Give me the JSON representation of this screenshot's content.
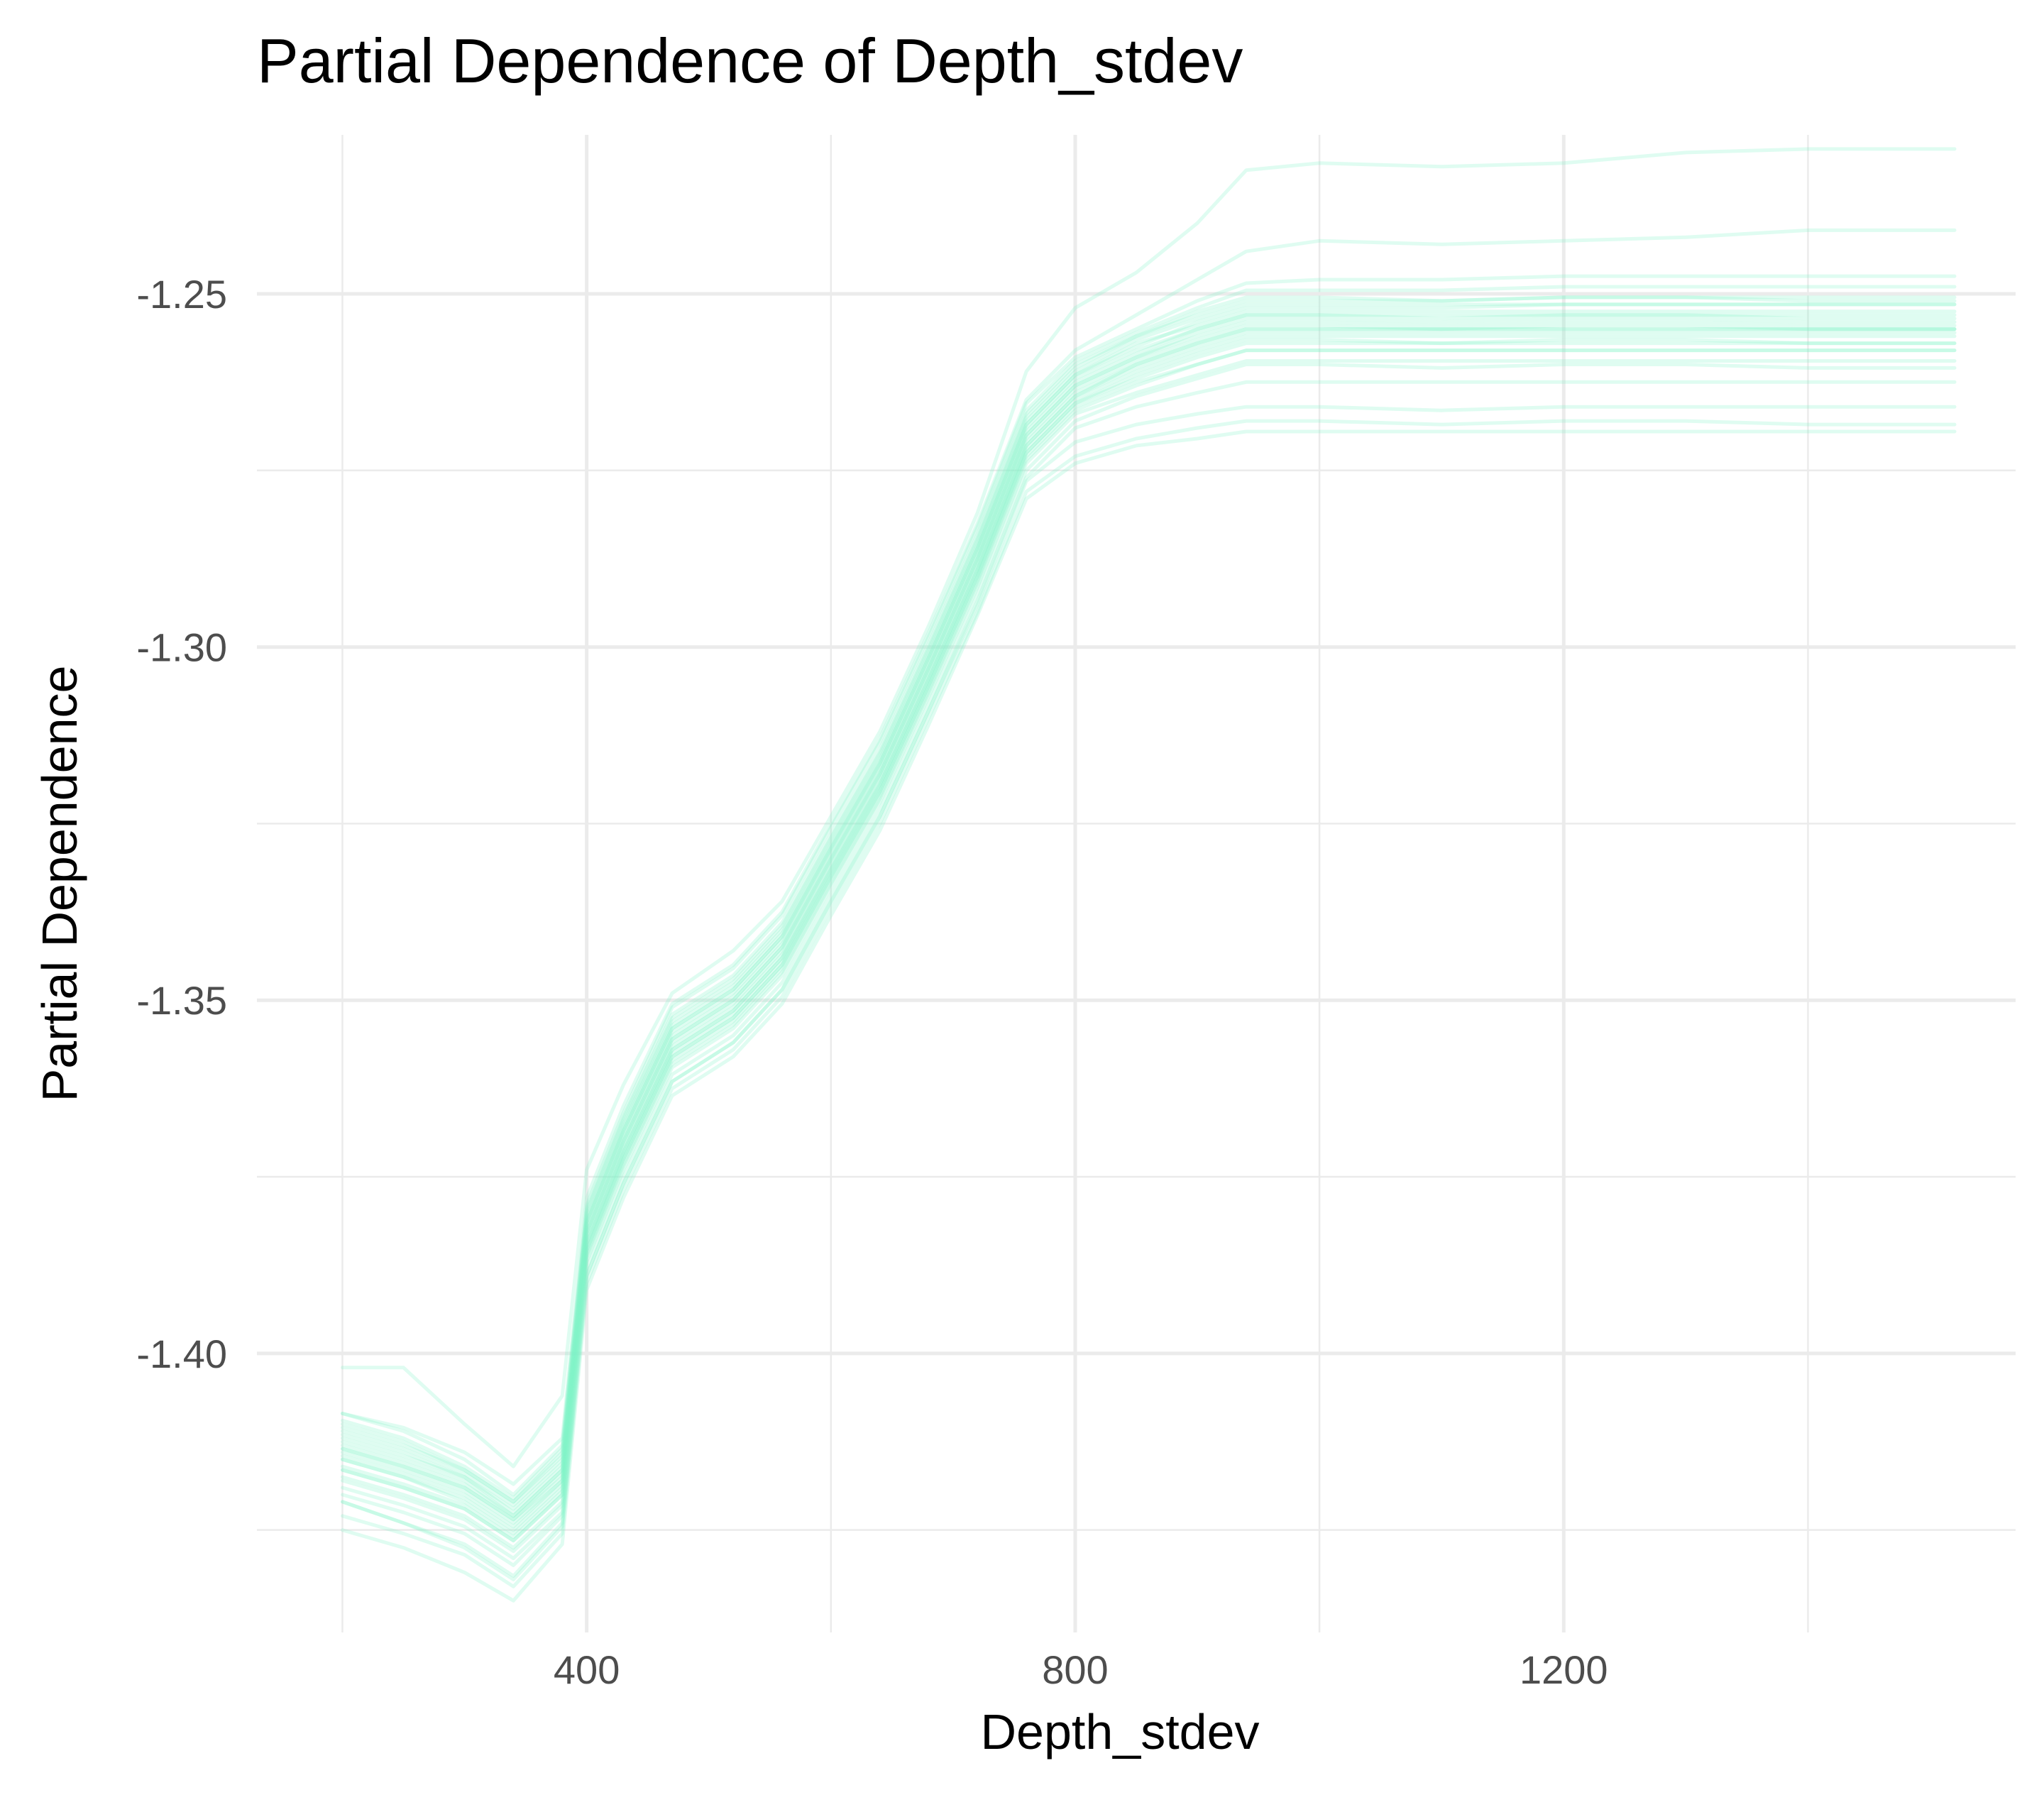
{
  "chart_data": {
    "type": "line",
    "title": "Partial Dependence of Depth_stdev",
    "xlabel": "Depth_stdev",
    "ylabel": "Partial Dependence",
    "xlim": [
      130,
      1570
    ],
    "ylim": [
      -1.4395,
      -1.2275
    ],
    "x_ticks": [
      400,
      800,
      1200
    ],
    "x_tick_labels": [
      "400",
      "800",
      "1200"
    ],
    "y_ticks": [
      -1.4,
      -1.35,
      -1.3,
      -1.25
    ],
    "y_tick_labels": [
      "-1.40",
      "-1.35",
      "-1.30",
      "-1.25"
    ],
    "grid": true,
    "legend": "none",
    "line_color": "#7ef2c9",
    "line_opacity": 0.25,
    "x": [
      200,
      250,
      300,
      340,
      380,
      400,
      430,
      470,
      520,
      560,
      600,
      640,
      680,
      720,
      760,
      800,
      850,
      900,
      940,
      1000,
      1100,
      1200,
      1300,
      1400,
      1520
    ],
    "series": [
      {
        "values": [
          -1.4135,
          -1.416,
          -1.419,
          -1.4235,
          -1.4175,
          -1.383,
          -1.37,
          -1.3555,
          -1.35,
          -1.3425,
          -1.33,
          -1.318,
          -1.303,
          -1.2875,
          -1.27,
          -1.263,
          -1.259,
          -1.256,
          -1.254,
          -1.254,
          -1.2545,
          -1.254,
          -1.254,
          -1.2545,
          -1.2545
        ]
      },
      {
        "values": [
          -1.41,
          -1.4125,
          -1.4165,
          -1.421,
          -1.414,
          -1.38,
          -1.367,
          -1.3525,
          -1.347,
          -1.3395,
          -1.327,
          -1.315,
          -1.3,
          -1.2845,
          -1.267,
          -1.26,
          -1.256,
          -1.2525,
          -1.2505,
          -1.2505,
          -1.251,
          -1.2505,
          -1.2505,
          -1.251,
          -1.251
        ]
      },
      {
        "values": [
          -1.4165,
          -1.419,
          -1.422,
          -1.4265,
          -1.42,
          -1.3855,
          -1.3725,
          -1.358,
          -1.3525,
          -1.345,
          -1.3325,
          -1.3205,
          -1.3055,
          -1.29,
          -1.2725,
          -1.2655,
          -1.2615,
          -1.2585,
          -1.2565,
          -1.2565,
          -1.257,
          -1.2565,
          -1.2565,
          -1.257,
          -1.257
        ]
      },
      {
        "values": [
          -1.4085,
          -1.411,
          -1.415,
          -1.42,
          -1.413,
          -1.379,
          -1.366,
          -1.351,
          -1.3455,
          -1.338,
          -1.3255,
          -1.3135,
          -1.2985,
          -1.283,
          -1.2655,
          -1.259,
          -1.255,
          -1.251,
          -1.2485,
          -1.248,
          -1.248,
          -1.2475,
          -1.2475,
          -1.2475,
          -1.2475
        ]
      },
      {
        "values": [
          -1.42,
          -1.4225,
          -1.4255,
          -1.43,
          -1.423,
          -1.388,
          -1.375,
          -1.3605,
          -1.355,
          -1.3475,
          -1.335,
          -1.323,
          -1.308,
          -1.2925,
          -1.275,
          -1.268,
          -1.2645,
          -1.262,
          -1.26,
          -1.26,
          -1.2605,
          -1.26,
          -1.26,
          -1.2605,
          -1.2605
        ]
      },
      {
        "values": [
          -1.412,
          -1.4145,
          -1.4175,
          -1.4225,
          -1.416,
          -1.3815,
          -1.3685,
          -1.354,
          -1.3485,
          -1.341,
          -1.3285,
          -1.3165,
          -1.3015,
          -1.286,
          -1.2685,
          -1.2615,
          -1.257,
          -1.2545,
          -1.2525,
          -1.2525,
          -1.2525,
          -1.2525,
          -1.2525,
          -1.2525,
          -1.2525
        ]
      },
      {
        "values": [
          -1.415,
          -1.4175,
          -1.4205,
          -1.425,
          -1.4185,
          -1.3845,
          -1.3715,
          -1.357,
          -1.3515,
          -1.344,
          -1.3315,
          -1.3195,
          -1.3045,
          -1.289,
          -1.2715,
          -1.2645,
          -1.2605,
          -1.2575,
          -1.2555,
          -1.2555,
          -1.2555,
          -1.2555,
          -1.2555,
          -1.2555,
          -1.2555
        ]
      },
      {
        "values": [
          -1.418,
          -1.4205,
          -1.4235,
          -1.428,
          -1.4215,
          -1.3865,
          -1.3735,
          -1.359,
          -1.3535,
          -1.346,
          -1.3335,
          -1.3215,
          -1.3065,
          -1.291,
          -1.2735,
          -1.2665,
          -1.263,
          -1.26,
          -1.258,
          -1.258,
          -1.258,
          -1.258,
          -1.258,
          -1.258,
          -1.258
        ]
      },
      {
        "values": [
          -1.411,
          -1.4135,
          -1.417,
          -1.4215,
          -1.415,
          -1.381,
          -1.368,
          -1.3535,
          -1.348,
          -1.3405,
          -1.328,
          -1.316,
          -1.301,
          -1.2855,
          -1.268,
          -1.261,
          -1.2565,
          -1.2535,
          -1.2515,
          -1.2515,
          -1.2515,
          -1.2515,
          -1.2515,
          -1.2515,
          -1.2515
        ]
      },
      {
        "values": [
          -1.414,
          -1.4165,
          -1.4195,
          -1.424,
          -1.418,
          -1.3835,
          -1.3705,
          -1.356,
          -1.3505,
          -1.343,
          -1.3305,
          -1.3185,
          -1.3035,
          -1.288,
          -1.2705,
          -1.2635,
          -1.2595,
          -1.2565,
          -1.2545,
          -1.2545,
          -1.255,
          -1.2545,
          -1.2545,
          -1.255,
          -1.255
        ]
      },
      {
        "values": [
          -1.4095,
          -1.412,
          -1.416,
          -1.4205,
          -1.4135,
          -1.3795,
          -1.3665,
          -1.352,
          -1.3465,
          -1.339,
          -1.3265,
          -1.3145,
          -1.2995,
          -1.284,
          -1.2665,
          -1.2595,
          -1.2555,
          -1.252,
          -1.2495,
          -1.2495,
          -1.2495,
          -1.249,
          -1.249,
          -1.249,
          -1.249
        ]
      },
      {
        "values": [
          -1.421,
          -1.424,
          -1.427,
          -1.4315,
          -1.424,
          -1.389,
          -1.376,
          -1.3615,
          -1.356,
          -1.3485,
          -1.336,
          -1.324,
          -1.309,
          -1.2935,
          -1.276,
          -1.269,
          -1.266,
          -1.264,
          -1.2625,
          -1.2625,
          -1.2625,
          -1.2625,
          -1.2625,
          -1.2625,
          -1.2625
        ]
      },
      {
        "values": [
          -1.4125,
          -1.415,
          -1.418,
          -1.423,
          -1.4165,
          -1.382,
          -1.369,
          -1.3545,
          -1.349,
          -1.3415,
          -1.329,
          -1.317,
          -1.302,
          -1.2865,
          -1.269,
          -1.262,
          -1.258,
          -1.255,
          -1.253,
          -1.253,
          -1.2535,
          -1.253,
          -1.253,
          -1.2535,
          -1.2535
        ]
      },
      {
        "values": [
          -1.416,
          -1.4185,
          -1.4215,
          -1.426,
          -1.4195,
          -1.385,
          -1.372,
          -1.3575,
          -1.352,
          -1.3445,
          -1.332,
          -1.32,
          -1.305,
          -1.2895,
          -1.272,
          -1.265,
          -1.261,
          -1.258,
          -1.256,
          -1.256,
          -1.256,
          -1.256,
          -1.256,
          -1.256,
          -1.256
        ]
      },
      {
        "values": [
          -1.4105,
          -1.413,
          -1.4165,
          -1.421,
          -1.4145,
          -1.3805,
          -1.3675,
          -1.353,
          -1.3475,
          -1.34,
          -1.3275,
          -1.3155,
          -1.3005,
          -1.285,
          -1.2675,
          -1.2605,
          -1.256,
          -1.253,
          -1.251,
          -1.251,
          -1.251,
          -1.2505,
          -1.2505,
          -1.2505,
          -1.2505
        ]
      },
      {
        "values": [
          -1.419,
          -1.4215,
          -1.4245,
          -1.429,
          -1.4225,
          -1.387,
          -1.374,
          -1.3595,
          -1.354,
          -1.3465,
          -1.334,
          -1.322,
          -1.307,
          -1.2915,
          -1.274,
          -1.267,
          -1.264,
          -1.2615,
          -1.2595,
          -1.2595,
          -1.2595,
          -1.2595,
          -1.2595,
          -1.2595,
          -1.2595
        ]
      },
      {
        "values": [
          -1.4135,
          -1.416,
          -1.419,
          -1.4235,
          -1.417,
          -1.383,
          -1.37,
          -1.3555,
          -1.35,
          -1.3425,
          -1.33,
          -1.318,
          -1.303,
          -1.2875,
          -1.27,
          -1.263,
          -1.259,
          -1.2555,
          -1.2535,
          -1.2535,
          -1.254,
          -1.2535,
          -1.2535,
          -1.254,
          -1.254
        ]
      },
      {
        "values": [
          -1.415,
          -1.4175,
          -1.421,
          -1.4255,
          -1.419,
          -1.3845,
          -1.3715,
          -1.357,
          -1.3515,
          -1.344,
          -1.3315,
          -1.3195,
          -1.3045,
          -1.289,
          -1.2715,
          -1.2645,
          -1.26,
          -1.257,
          -1.255,
          -1.255,
          -1.255,
          -1.255,
          -1.255,
          -1.255,
          -1.255
        ]
      },
      {
        "values": [
          -1.402,
          -1.402,
          -1.41,
          -1.416,
          -1.406,
          -1.374,
          -1.362,
          -1.349,
          -1.343,
          -1.336,
          -1.324,
          -1.312,
          -1.297,
          -1.281,
          -1.261,
          -1.252,
          -1.247,
          -1.24,
          -1.2325,
          -1.2315,
          -1.232,
          -1.2315,
          -1.23,
          -1.2295,
          -1.2295
        ]
      },
      {
        "values": [
          -1.4085,
          -1.4105,
          -1.414,
          -1.4185,
          -1.412,
          -1.378,
          -1.365,
          -1.3505,
          -1.345,
          -1.3375,
          -1.325,
          -1.313,
          -1.298,
          -1.2825,
          -1.265,
          -1.258,
          -1.253,
          -1.248,
          -1.244,
          -1.2425,
          -1.243,
          -1.2425,
          -1.242,
          -1.241,
          -1.241
        ]
      },
      {
        "values": [
          -1.423,
          -1.4255,
          -1.4285,
          -1.433,
          -1.4255,
          -1.39,
          -1.377,
          -1.3625,
          -1.357,
          -1.3495,
          -1.337,
          -1.325,
          -1.31,
          -1.295,
          -1.278,
          -1.273,
          -1.2705,
          -1.269,
          -1.268,
          -1.268,
          -1.2685,
          -1.268,
          -1.268,
          -1.2685,
          -1.2685
        ]
      },
      {
        "values": [
          -1.421,
          -1.424,
          -1.4275,
          -1.432,
          -1.4245,
          -1.389,
          -1.376,
          -1.3615,
          -1.356,
          -1.3485,
          -1.336,
          -1.324,
          -1.309,
          -1.294,
          -1.2765,
          -1.271,
          -1.2685,
          -1.267,
          -1.266,
          -1.266,
          -1.2665,
          -1.266,
          -1.266,
          -1.266,
          -1.266
        ]
      },
      {
        "values": [
          -1.425,
          -1.4275,
          -1.431,
          -1.435,
          -1.427,
          -1.391,
          -1.378,
          -1.3635,
          -1.358,
          -1.3505,
          -1.338,
          -1.326,
          -1.311,
          -1.2955,
          -1.279,
          -1.274,
          -1.2715,
          -1.2705,
          -1.2695,
          -1.2695,
          -1.2695,
          -1.2695,
          -1.2695,
          -1.2695,
          -1.2695
        ]
      },
      {
        "values": [
          -1.4175,
          -1.42,
          -1.423,
          -1.4275,
          -1.421,
          -1.386,
          -1.373,
          -1.3585,
          -1.353,
          -1.3455,
          -1.333,
          -1.321,
          -1.306,
          -1.2905,
          -1.273,
          -1.266,
          -1.2625,
          -1.26,
          -1.258,
          -1.258,
          -1.258,
          -1.258,
          -1.258,
          -1.258,
          -1.258
        ]
      },
      {
        "values": [
          -1.4115,
          -1.414,
          -1.4175,
          -1.422,
          -1.4155,
          -1.3815,
          -1.3685,
          -1.354,
          -1.3485,
          -1.341,
          -1.3285,
          -1.3165,
          -1.3015,
          -1.286,
          -1.2685,
          -1.2615,
          -1.2575,
          -1.254,
          -1.252,
          -1.252,
          -1.252,
          -1.2515,
          -1.2515,
          -1.2515,
          -1.2515
        ]
      },
      {
        "values": [
          -1.4145,
          -1.417,
          -1.42,
          -1.4245,
          -1.418,
          -1.384,
          -1.371,
          -1.3565,
          -1.351,
          -1.3435,
          -1.331,
          -1.319,
          -1.304,
          -1.2885,
          -1.271,
          -1.264,
          -1.26,
          -1.257,
          -1.255,
          -1.255,
          -1.255,
          -1.255,
          -1.255,
          -1.255,
          -1.255
        ]
      },
      {
        "values": [
          -1.4165,
          -1.419,
          -1.422,
          -1.4265,
          -1.42,
          -1.3855,
          -1.3725,
          -1.358,
          -1.3525,
          -1.345,
          -1.3325,
          -1.3205,
          -1.3055,
          -1.29,
          -1.2725,
          -1.2655,
          -1.262,
          -1.259,
          -1.257,
          -1.257,
          -1.257,
          -1.257,
          -1.257,
          -1.257,
          -1.257
        ]
      },
      {
        "values": [
          -1.413,
          -1.4155,
          -1.4185,
          -1.423,
          -1.4165,
          -1.3825,
          -1.3695,
          -1.355,
          -1.3495,
          -1.342,
          -1.3295,
          -1.3175,
          -1.3025,
          -1.287,
          -1.2695,
          -1.2625,
          -1.2585,
          -1.255,
          -1.253,
          -1.253,
          -1.253,
          -1.253,
          -1.253,
          -1.253,
          -1.253
        ]
      }
    ]
  }
}
